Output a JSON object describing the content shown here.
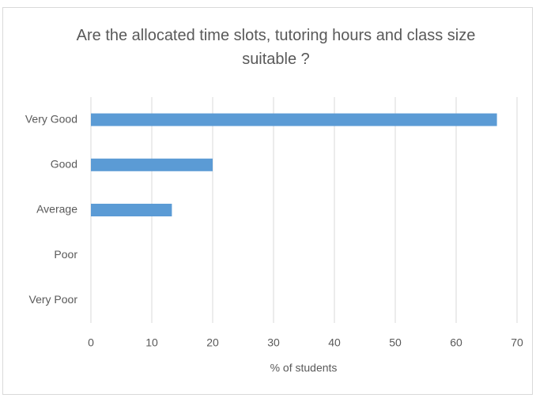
{
  "chart_data": {
    "type": "bar",
    "orientation": "horizontal",
    "title": "Are the allocated time slots, tutoring hours and class size suitable ?",
    "categories": [
      "Very Good",
      "Good",
      "Average",
      "Poor",
      "Very Poor"
    ],
    "values": [
      66.7,
      20,
      13.3,
      0,
      0
    ],
    "color": "#5b9bd5",
    "xlabel": "% of students",
    "xlim": [
      0,
      70
    ],
    "xticks": [
      0,
      10,
      20,
      30,
      40,
      50,
      60,
      70
    ],
    "grid": true
  }
}
